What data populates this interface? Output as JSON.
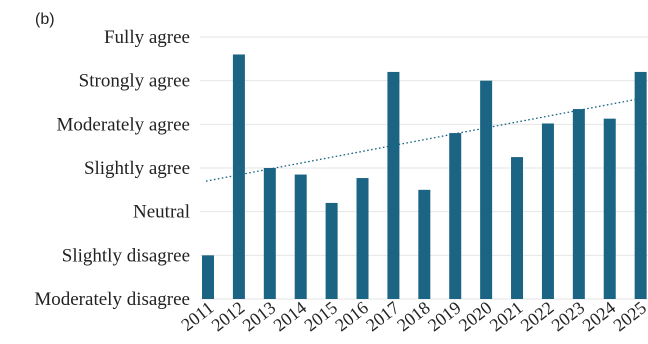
{
  "panel_label": "(b)",
  "chart_data": {
    "type": "bar",
    "title": "",
    "xlabel": "",
    "ylabel": "",
    "categories": [
      "2011",
      "2012",
      "2013",
      "2014",
      "2015",
      "2016",
      "2017",
      "2018",
      "2019",
      "2020",
      "2021",
      "2022",
      "2023",
      "2024",
      "2025"
    ],
    "y_levels": [
      "Moderately disagree",
      "Slightly disagree",
      "Neutral",
      "Slightly agree",
      "Moderately agree",
      "Strongly agree",
      "Fully agree"
    ],
    "ylim": [
      0,
      6
    ],
    "values": [
      1.0,
      5.6,
      3.0,
      2.85,
      2.2,
      2.77,
      5.2,
      2.5,
      3.8,
      5.0,
      3.25,
      4.02,
      4.35,
      4.13,
      5.2
    ],
    "trendline": {
      "style": "dotted",
      "start": 2.7,
      "end": 4.6
    },
    "color": "#1b6484",
    "grid": true,
    "legend": "none"
  }
}
